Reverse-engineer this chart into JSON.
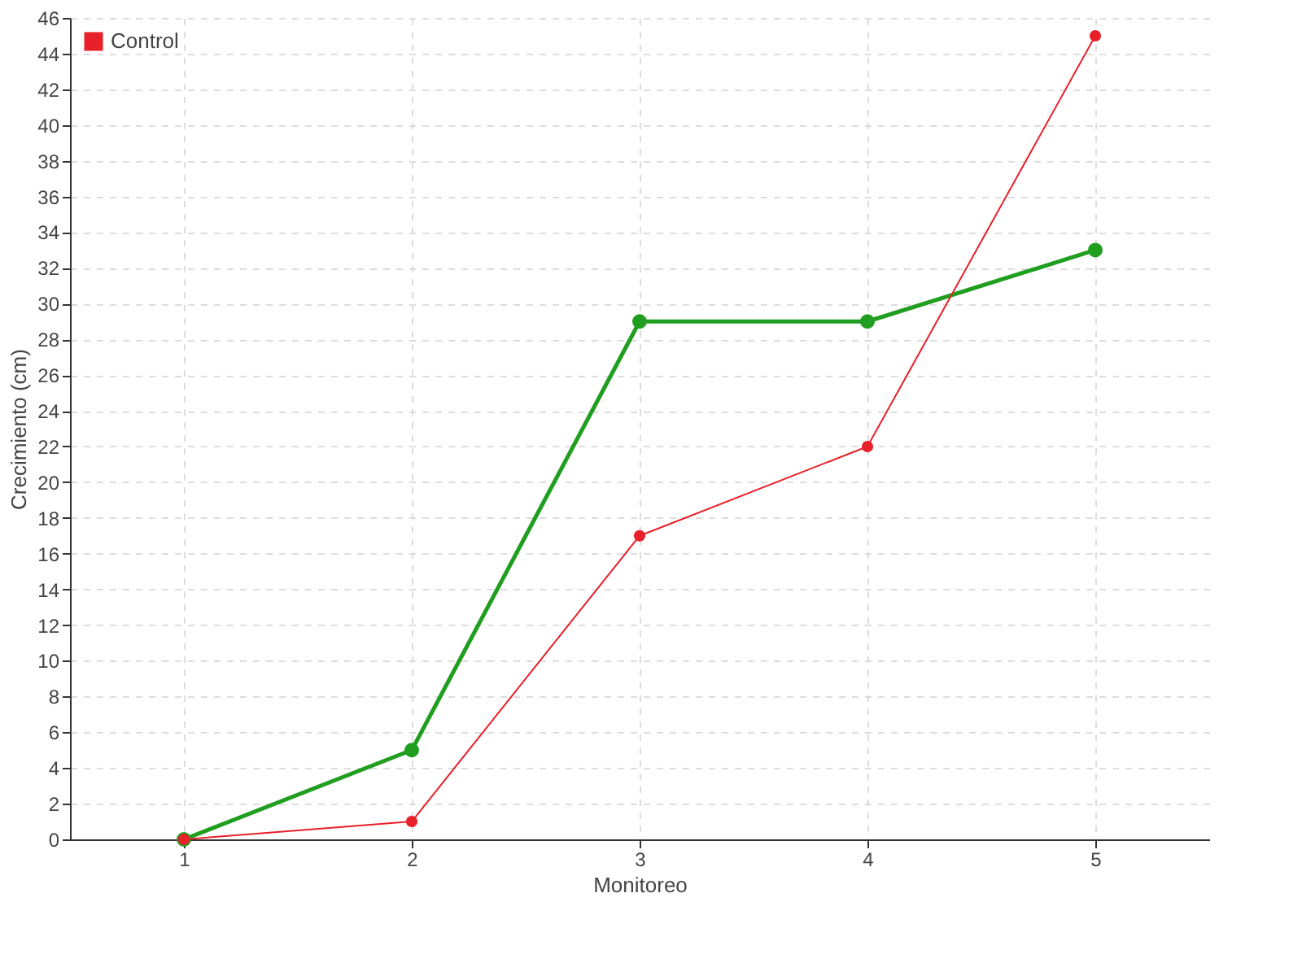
{
  "chart_data": {
    "type": "line",
    "xlabel": "Monitoreo",
    "ylabel": "Crecimiento (cm)",
    "x": [
      1,
      2,
      3,
      4,
      5
    ],
    "series": [
      {
        "color": "#1f9e1f",
        "values": [
          0,
          5,
          29,
          29,
          33
        ]
      },
      {
        "name": "Control",
        "color": "#e8202a",
        "values": [
          0,
          1,
          17,
          22,
          45
        ]
      }
    ],
    "xlim": [
      0.5,
      5.5
    ],
    "xticks": [
      1,
      2,
      3,
      4,
      5
    ],
    "ylim": [
      0,
      46
    ],
    "yticks": [
      0,
      2,
      4,
      6,
      8,
      10,
      12,
      14,
      16,
      18,
      20,
      22,
      24,
      26,
      28,
      30,
      32,
      34,
      36,
      38,
      40,
      42,
      44,
      46
    ],
    "grid": true,
    "legend": "top left",
    "marker": "circle",
    "line_style": "solid"
  }
}
